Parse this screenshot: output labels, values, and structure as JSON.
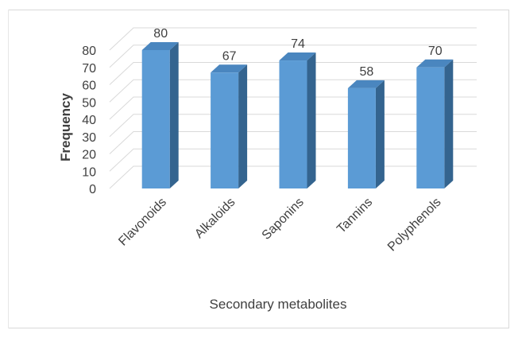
{
  "chart_data": {
    "type": "bar",
    "style": "3d-clustered-column",
    "categories": [
      "Flavonoids",
      "Alkaloids",
      "Saponins",
      "Tannins",
      "Polyphenols"
    ],
    "values": [
      80,
      67,
      74,
      58,
      70
    ],
    "title": "",
    "xlabel": "Secondary metabolites",
    "ylabel": "Frequency",
    "ylim": [
      0,
      80
    ],
    "yticks": [
      0,
      10,
      20,
      30,
      40,
      50,
      60,
      70,
      80
    ],
    "grid": true,
    "legend": "none",
    "data_labels": true,
    "colors": {
      "bar_front": "#5b9bd5",
      "bar_top": "#4a86bf",
      "bar_side": "#34648f",
      "gridline": "#d9d9d9",
      "text": "#404040"
    }
  }
}
